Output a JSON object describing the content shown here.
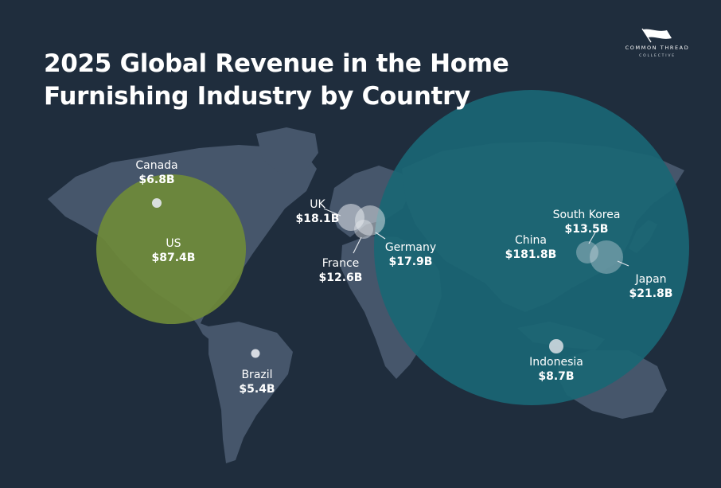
{
  "title_line1": "2025 Global Revenue in the Home",
  "title_line2": "Furnishing Industry by Country",
  "logo": {
    "name": "COMMON THREAD",
    "sub": "COLLECTIVE",
    "icon": "flag-icon"
  },
  "colors": {
    "background": "#1f2d3d",
    "land": "#46566b",
    "us_bubble": "#6f8a3a",
    "china_bubble": "#1a6674",
    "small_bubble": "#e6e9ee"
  },
  "countries": [
    {
      "name": "Canada",
      "value": "$6.8B",
      "revenue_billion": 6.8
    },
    {
      "name": "US",
      "value": "$87.4B",
      "revenue_billion": 87.4
    },
    {
      "name": "Brazil",
      "value": "$5.4B",
      "revenue_billion": 5.4
    },
    {
      "name": "UK",
      "value": "$18.1B",
      "revenue_billion": 18.1
    },
    {
      "name": "France",
      "value": "$12.6B",
      "revenue_billion": 12.6
    },
    {
      "name": "Germany",
      "value": "$17.9B",
      "revenue_billion": 17.9
    },
    {
      "name": "China",
      "value": "$181.8B",
      "revenue_billion": 181.8
    },
    {
      "name": "South Korea",
      "value": "$13.5B",
      "revenue_billion": 13.5
    },
    {
      "name": "Japan",
      "value": "$21.8B",
      "revenue_billion": 21.8
    },
    {
      "name": "Indonesia",
      "value": "$8.7B",
      "revenue_billion": 8.7
    }
  ]
}
